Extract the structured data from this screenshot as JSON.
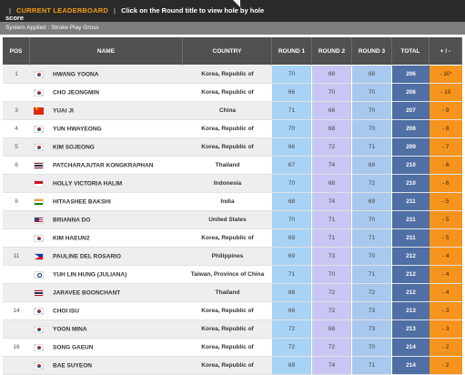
{
  "header": {
    "leaderboard_label": "CURRENT LEADERBOARD",
    "hint": "Click on the Round title to view hole by hole",
    "hint_continued": "score",
    "separator": "|"
  },
  "system": {
    "text": "System Applied : Stroke Play Gross"
  },
  "columns": {
    "pos": "POS",
    "name": "NAME",
    "country": "COUNTRY",
    "round1": "ROUND 1",
    "round2": "ROUND 2",
    "round3": "ROUND 3",
    "total": "TOTAL",
    "topar": "+ / -"
  },
  "rows": [
    {
      "pos": "1",
      "flag": "KOR",
      "name": "HWANG YOONA",
      "country": "Korea, Republic of",
      "r1": "70",
      "r2": "68",
      "r3": "68",
      "total": "206",
      "topar": "- 10",
      "topar_sup": "*"
    },
    {
      "pos": "",
      "flag": "KOR",
      "name": "CHO JEONGMIN",
      "country": "Korea, Republic of",
      "r1": "66",
      "r2": "70",
      "r3": "70",
      "total": "206",
      "topar": "- 10",
      "topar_sup": ""
    },
    {
      "pos": "3",
      "flag": "CHN",
      "name": "YUAI JI",
      "country": "China",
      "r1": "71",
      "r2": "66",
      "r3": "70",
      "total": "207",
      "topar": "- 9",
      "topar_sup": ""
    },
    {
      "pos": "4",
      "flag": "KOR",
      "name": "YUN HWAYEONG",
      "country": "Korea, Republic of",
      "r1": "70",
      "r2": "68",
      "r3": "70",
      "total": "208",
      "topar": "- 8",
      "topar_sup": ""
    },
    {
      "pos": "5",
      "flag": "KOR",
      "name": "KIM SOJEONG",
      "country": "Korea, Republic of",
      "r1": "66",
      "r2": "72",
      "r3": "71",
      "total": "209",
      "topar": "- 7",
      "topar_sup": ""
    },
    {
      "pos": "6",
      "flag": "THA",
      "name": "PATCHARAJUTAR KONGKRAPHAN",
      "country": "Thailand",
      "r1": "67",
      "r2": "74",
      "r3": "69",
      "total": "210",
      "topar": "- 6",
      "topar_sup": ""
    },
    {
      "pos": "",
      "flag": "IDN",
      "name": "HOLLY VICTORIA HALIM",
      "country": "Indonesia",
      "r1": "70",
      "r2": "68",
      "r3": "72",
      "total": "210",
      "topar": "- 6",
      "topar_sup": ""
    },
    {
      "pos": "8",
      "flag": "IND",
      "name": "HITAASHEE BAKSHI",
      "country": "India",
      "r1": "68",
      "r2": "74",
      "r3": "69",
      "total": "211",
      "topar": "- 5",
      "topar_sup": ""
    },
    {
      "pos": "",
      "flag": "USA",
      "name": "BRIANNA DO",
      "country": "United States",
      "r1": "70",
      "r2": "71",
      "r3": "70",
      "total": "211",
      "topar": "- 5",
      "topar_sup": ""
    },
    {
      "pos": "",
      "flag": "KOR",
      "name": "KIM HAEUN2",
      "country": "Korea, Republic of",
      "r1": "69",
      "r2": "71",
      "r3": "71",
      "total": "211",
      "topar": "- 5",
      "topar_sup": ""
    },
    {
      "pos": "11",
      "flag": "PHI",
      "name": "PAULINE DEL ROSARIO",
      "country": "Philippines",
      "r1": "69",
      "r2": "73",
      "r3": "70",
      "total": "212",
      "topar": "- 4",
      "topar_sup": ""
    },
    {
      "pos": "",
      "flag": "TPE",
      "name": "YUH LIN HUNG (JULIANA)",
      "country": "Taiwan, Province of China",
      "r1": "71",
      "r2": "70",
      "r3": "71",
      "total": "212",
      "topar": "- 4",
      "topar_sup": ""
    },
    {
      "pos": "",
      "flag": "THA",
      "name": "JARAVEE BOONCHANT",
      "country": "Thailand",
      "r1": "68",
      "r2": "72",
      "r3": "72",
      "total": "212",
      "topar": "- 4",
      "topar_sup": ""
    },
    {
      "pos": "14",
      "flag": "KOR",
      "name": "CHOI ISU",
      "country": "Korea, Republic of",
      "r1": "68",
      "r2": "72",
      "r3": "73",
      "total": "213",
      "topar": "- 3",
      "topar_sup": ""
    },
    {
      "pos": "",
      "flag": "KOR",
      "name": "YOON MINA",
      "country": "Korea, Republic of",
      "r1": "72",
      "r2": "68",
      "r3": "73",
      "total": "213",
      "topar": "- 3",
      "topar_sup": ""
    },
    {
      "pos": "16",
      "flag": "KOR",
      "name": "SONG GAEUN",
      "country": "Korea, Republic of",
      "r1": "72",
      "r2": "72",
      "r3": "70",
      "total": "214",
      "topar": "- 2",
      "topar_sup": ""
    },
    {
      "pos": "",
      "flag": "KOR",
      "name": "BAE SUYEON",
      "country": "Korea, Republic of",
      "r1": "69",
      "r2": "74",
      "r3": "71",
      "total": "214",
      "topar": "- 2",
      "topar_sup": ""
    }
  ],
  "colors": {
    "header_bg": "#2a2a2a",
    "accent_orange": "#f39c12",
    "round1_bg": "#a8d3f5",
    "round2_bg": "#c8c6f2",
    "round3_bg": "#a9c8ee",
    "total_bg": "#4f6fa5",
    "topar_bg": "#f7941d"
  }
}
